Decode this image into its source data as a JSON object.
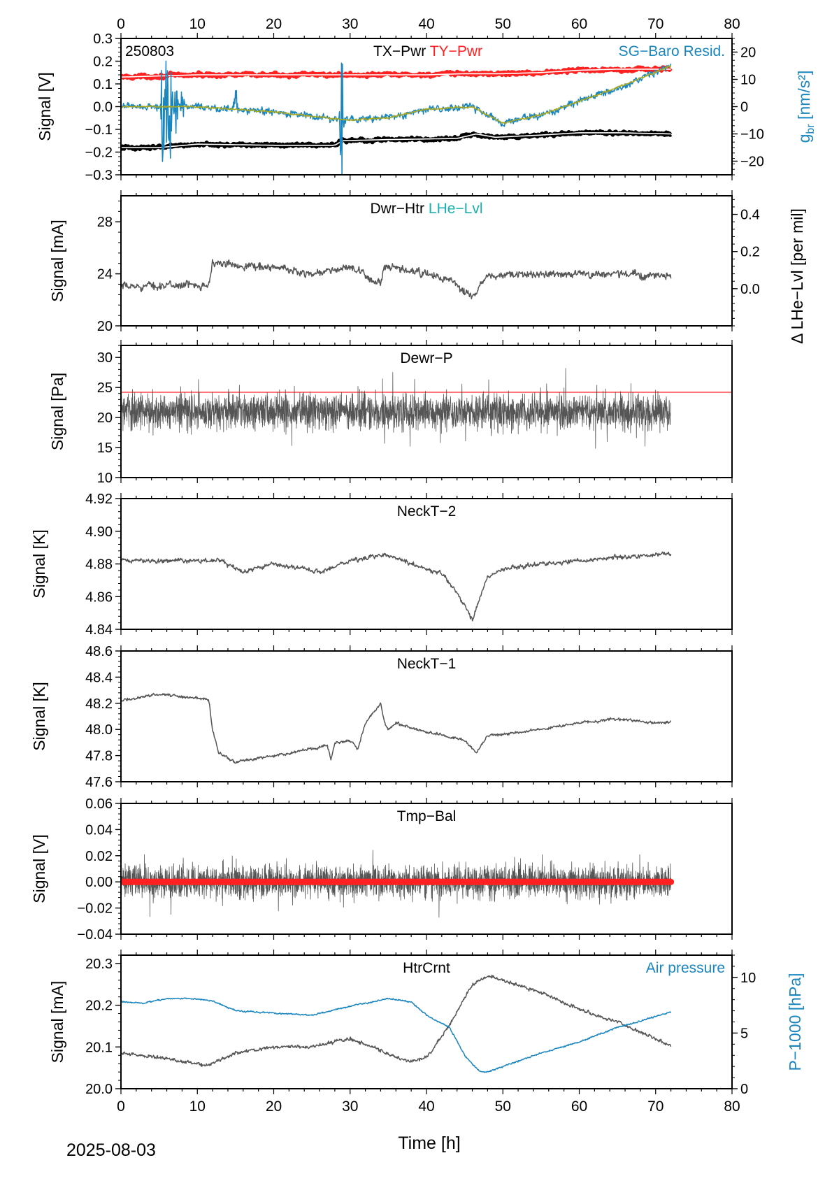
{
  "figure": {
    "date_label": "2025-08-03",
    "x_axis_label": "Time [h]"
  },
  "colors": {
    "black": "#000000",
    "gray": "#555555",
    "red": "#ff2020",
    "blue": "#1a86c0",
    "teal": "#1ab0b0",
    "olive": "#a8a820",
    "white": "#ffffff"
  },
  "chart_data": [
    {
      "type": "line",
      "id": "p1",
      "station_code": "250803",
      "title_parts": [
        {
          "text": "TX−Pwr",
          "color": "black"
        },
        {
          "text": "TY−Pwr",
          "color": "red"
        }
      ],
      "right_legend": {
        "text": "SG−Baro Resid.",
        "color": "blue"
      },
      "ylabel": "Signal [V]",
      "ylim": [
        -0.3,
        0.3
      ],
      "yticks": [
        -0.3,
        -0.2,
        -0.1,
        0.0,
        0.1,
        0.2,
        0.3
      ],
      "ytick_labels": [
        "−0.3",
        "−0.2",
        "−0.1",
        "0.0",
        "0.1",
        "0.2",
        "0.3"
      ],
      "y2label": "g_br [nm/s²]",
      "y2lim": [
        -25,
        25
      ],
      "y2ticks": [
        -20,
        -10,
        0,
        10,
        20
      ],
      "y2tick_labels": [
        "−20",
        "−10",
        "0",
        "10",
        "20"
      ],
      "xlim": [
        0,
        80
      ],
      "top_xticks": [
        0,
        10,
        20,
        30,
        40,
        50,
        60,
        70,
        80
      ],
      "series": [
        {
          "name": "TY−Pwr",
          "color": "red",
          "axis": "left",
          "style": "cased",
          "noise": 0.006,
          "x": [
            0,
            10,
            20,
            30,
            40,
            45,
            50,
            55,
            60,
            65,
            72
          ],
          "y": [
            0.13,
            0.14,
            0.14,
            0.14,
            0.14,
            0.145,
            0.145,
            0.15,
            0.16,
            0.165,
            0.165
          ]
        },
        {
          "name": "TX−Pwr",
          "color": "black",
          "axis": "left",
          "style": "cased",
          "noise": 0.005,
          "x": [
            0,
            5,
            10,
            20,
            28,
            29,
            35,
            44,
            46.5,
            49,
            55,
            60,
            65,
            72
          ],
          "y": [
            -0.18,
            -0.18,
            -0.165,
            -0.17,
            -0.17,
            -0.15,
            -0.145,
            -0.14,
            -0.12,
            -0.135,
            -0.125,
            -0.115,
            -0.115,
            -0.12
          ]
        },
        {
          "name": "SG−Baro Resid.",
          "color": "blue",
          "axis": "right",
          "style": "thin",
          "noise": 1.0,
          "x": [
            0,
            10,
            20,
            30,
            35,
            40,
            46,
            50,
            55,
            60,
            65,
            72
          ],
          "y": [
            0,
            0,
            -2,
            -5,
            -4,
            -1,
            0,
            -6,
            -3,
            2,
            7,
            15
          ],
          "spikes": [
            {
              "x": 5.5,
              "amp": 30
            },
            {
              "x": 6.0,
              "amp": 30
            },
            {
              "x": 6.5,
              "amp": 22
            },
            {
              "x": 7.2,
              "amp": 14
            },
            {
              "x": 8.0,
              "amp": 10
            },
            {
              "x": 15.0,
              "amp": 12
            },
            {
              "x": 28.9,
              "amp": 28
            }
          ]
        },
        {
          "name": "SG−Baro Resid. (smoothed)",
          "color": "olive",
          "axis": "right",
          "style": "thin",
          "noise": 0.25,
          "x": [
            0,
            10,
            20,
            30,
            35,
            40,
            46,
            50,
            55,
            60,
            65,
            72
          ],
          "y": [
            0,
            0,
            -2,
            -5,
            -4,
            -1,
            0,
            -6,
            -3,
            2,
            7,
            15
          ]
        }
      ]
    },
    {
      "type": "line",
      "id": "p2",
      "title_parts": [
        {
          "text": "Dwr−Htr",
          "color": "black"
        },
        {
          "text": "LHe−Lvl",
          "color": "teal"
        }
      ],
      "ylabel": "Signal [mA]",
      "ylim": [
        20,
        30
      ],
      "yticks": [
        20,
        24,
        28
      ],
      "ytick_labels": [
        "20",
        "24",
        "28"
      ],
      "y2label": "Δ LHe−Lvl [per mil]",
      "y2lim": [
        -0.2,
        0.5
      ],
      "y2ticks": [
        0.0,
        0.2,
        0.4
      ],
      "y2tick_labels": [
        "0.0",
        "0.2",
        "0.4"
      ],
      "xlim": [
        0,
        80
      ],
      "series": [
        {
          "name": "Dwr−Htr",
          "color": "gray",
          "axis": "left",
          "style": "noisy",
          "noise": 0.22,
          "x": [
            0,
            11.5,
            12,
            20,
            25,
            30,
            34,
            34.5,
            40,
            43,
            46,
            48,
            55,
            65,
            72
          ],
          "y": [
            23.0,
            23.2,
            24.8,
            24.5,
            24.0,
            24.5,
            23.2,
            24.5,
            24.0,
            23.5,
            22.2,
            23.8,
            24.0,
            24.0,
            23.8
          ]
        }
      ]
    },
    {
      "type": "line",
      "id": "p3",
      "title_parts": [
        {
          "text": "Dewr−P",
          "color": "black"
        }
      ],
      "ylabel": "Signal [Pa]",
      "ylim": [
        10,
        32
      ],
      "yticks": [
        10,
        15,
        20,
        25,
        30
      ],
      "ytick_labels": [
        "10",
        "15",
        "20",
        "25",
        "30"
      ],
      "xlim": [
        0,
        80
      ],
      "hline": {
        "y": 24.2,
        "color": "red"
      },
      "series": [
        {
          "name": "Dewr−P",
          "color": "gray",
          "axis": "left",
          "style": "dense",
          "noise": 2.2,
          "x": [
            0,
            72
          ],
          "y": [
            21,
            21
          ]
        }
      ]
    },
    {
      "type": "line",
      "id": "p4",
      "title_parts": [
        {
          "text": "NeckT−2",
          "color": "black"
        }
      ],
      "ylabel": "Signal [K]",
      "ylim": [
        4.84,
        4.92
      ],
      "yticks": [
        4.84,
        4.86,
        4.88,
        4.9,
        4.92
      ],
      "ytick_labels": [
        "4.84",
        "4.86",
        "4.88",
        "4.90",
        "4.92"
      ],
      "xlim": [
        0,
        80
      ],
      "series": [
        {
          "name": "NeckT−2",
          "color": "gray",
          "axis": "left",
          "style": "noisy",
          "noise": 0.001,
          "x": [
            0,
            10,
            13,
            16,
            20,
            26,
            30,
            35,
            38,
            42,
            43.5,
            45,
            46,
            47,
            48,
            50,
            55,
            60,
            65,
            72
          ],
          "y": [
            4.882,
            4.882,
            4.882,
            4.875,
            4.88,
            4.875,
            4.882,
            4.886,
            4.88,
            4.874,
            4.865,
            4.855,
            4.845,
            4.86,
            4.872,
            4.877,
            4.88,
            4.882,
            4.884,
            4.886
          ]
        }
      ]
    },
    {
      "type": "line",
      "id": "p5",
      "title_parts": [
        {
          "text": "NeckT−1",
          "color": "black"
        }
      ],
      "ylabel": "Signal [K]",
      "ylim": [
        47.6,
        48.6
      ],
      "yticks": [
        47.6,
        47.8,
        48.0,
        48.2,
        48.4,
        48.6
      ],
      "ytick_labels": [
        "47.6",
        "47.8",
        "48.0",
        "48.2",
        "48.4",
        "48.6"
      ],
      "xlim": [
        0,
        80
      ],
      "series": [
        {
          "name": "NeckT−1",
          "color": "gray",
          "axis": "left",
          "style": "noisy",
          "noise": 0.008,
          "x": [
            0,
            5,
            11.5,
            12,
            12.8,
            15,
            20,
            25,
            27,
            27.5,
            28,
            30,
            31,
            32,
            34,
            34.5,
            35,
            36,
            40,
            45,
            46.5,
            48,
            55,
            60,
            65,
            70,
            72
          ],
          "y": [
            48.22,
            48.27,
            48.23,
            48.0,
            47.82,
            47.75,
            47.8,
            47.85,
            47.88,
            47.77,
            47.9,
            47.92,
            47.85,
            48.05,
            48.2,
            48.05,
            48.0,
            48.05,
            47.98,
            47.92,
            47.82,
            47.95,
            48.0,
            48.05,
            48.08,
            48.05,
            48.06
          ]
        }
      ]
    },
    {
      "type": "line",
      "id": "p6",
      "title_parts": [
        {
          "text": "Tmp−Bal",
          "color": "black"
        }
      ],
      "ylabel": "Signal [V]",
      "ylim": [
        -0.04,
        0.06
      ],
      "yticks": [
        -0.04,
        -0.02,
        0.0,
        0.02,
        0.04,
        0.06
      ],
      "ytick_labels": [
        "−0.04",
        "−0.02",
        "0.00",
        "0.02",
        "0.04",
        "0.06"
      ],
      "xlim": [
        0,
        80
      ],
      "series": [
        {
          "name": "Tmp−Bal",
          "color": "gray",
          "axis": "left",
          "style": "dense",
          "noise": 0.009,
          "x": [
            0,
            72
          ],
          "y": [
            0,
            0
          ]
        },
        {
          "name": "Tmp−Bal (mean)",
          "color": "red",
          "axis": "left",
          "style": "thick",
          "noise": 0,
          "x": [
            0,
            72
          ],
          "y": [
            0,
            0
          ]
        }
      ]
    },
    {
      "type": "line",
      "id": "p7",
      "title_parts": [
        {
          "text": "HtrCrnt",
          "color": "black"
        }
      ],
      "right_legend": {
        "text": "Air pressure",
        "color": "blue"
      },
      "ylabel": "Signal [mA]",
      "ylim": [
        20.0,
        20.32
      ],
      "yticks": [
        20.0,
        20.1,
        20.2,
        20.3
      ],
      "ytick_labels": [
        "20.0",
        "20.1",
        "20.2",
        "20.3"
      ],
      "y2label": "P−1000 [hPa]",
      "y2lim": [
        0,
        12
      ],
      "y2ticks": [
        0,
        5,
        10
      ],
      "y2tick_labels": [
        "0",
        "5",
        "10"
      ],
      "xlim": [
        0,
        80
      ],
      "xticks": [
        0,
        10,
        20,
        30,
        40,
        50,
        60,
        70,
        80
      ],
      "series": [
        {
          "name": "HtrCrnt",
          "color": "gray",
          "axis": "left",
          "style": "noisy",
          "noise": 0.003,
          "x": [
            0,
            5,
            10,
            11,
            15,
            20,
            25,
            30,
            33,
            36,
            38,
            40,
            43,
            46,
            48,
            50,
            55,
            60,
            65,
            70,
            72
          ],
          "y": [
            20.085,
            20.075,
            20.06,
            20.055,
            20.085,
            20.1,
            20.1,
            20.12,
            20.1,
            20.075,
            20.065,
            20.075,
            20.15,
            20.25,
            20.27,
            20.26,
            20.23,
            20.19,
            20.16,
            20.12,
            20.1
          ]
        },
        {
          "name": "Air pressure",
          "color": "blue",
          "axis": "right",
          "style": "thin",
          "noise": 0.05,
          "x": [
            0,
            3,
            6,
            9,
            12,
            15,
            20,
            25,
            30,
            35,
            38,
            40,
            43,
            45,
            47,
            48,
            50,
            55,
            60,
            65,
            70,
            72
          ],
          "y": [
            7.8,
            7.7,
            8.1,
            8.1,
            7.9,
            7.0,
            6.8,
            6.6,
            7.4,
            8.1,
            7.8,
            6.6,
            5.5,
            3.0,
            1.5,
            1.5,
            2.0,
            3.2,
            4.2,
            5.5,
            6.5,
            6.9
          ]
        }
      ]
    }
  ]
}
